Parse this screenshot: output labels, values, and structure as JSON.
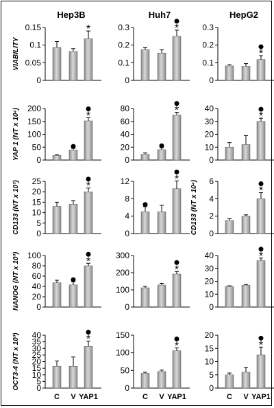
{
  "columns": [
    "Hep3B",
    "Huh7",
    "HepG2"
  ],
  "categories": [
    "C",
    "V",
    "YAP1"
  ],
  "colors": {
    "bar": "#8c8c8c",
    "bar_highlight": "#d9d9d9",
    "axis": "#000000"
  },
  "chart_data": [
    {
      "type": "bar",
      "row": 0,
      "col": 0,
      "title": "Hep3B",
      "ylabel": "VIABILITY",
      "ylim": [
        0,
        0.15
      ],
      "yticks": [
        "0",
        "0.05",
        "0.1",
        "0.15"
      ],
      "categories": [
        "C",
        "V",
        "YAP1"
      ],
      "values": [
        0.093,
        0.082,
        0.118
      ],
      "errors": [
        0.017,
        0.008,
        0.022
      ],
      "star": [
        false,
        false,
        true
      ],
      "dot": [
        false,
        false,
        false
      ]
    },
    {
      "type": "bar",
      "row": 0,
      "col": 1,
      "title": "Huh7",
      "ylabel": "",
      "ylim": [
        0,
        0.3
      ],
      "yticks": [
        "0",
        "0.1",
        "0.2",
        "0.3"
      ],
      "categories": [
        "C",
        "V",
        "YAP1"
      ],
      "values": [
        0.174,
        0.155,
        0.25
      ],
      "errors": [
        0.012,
        0.018,
        0.035
      ],
      "star": [
        false,
        false,
        true
      ],
      "dot": [
        false,
        false,
        true
      ]
    },
    {
      "type": "bar",
      "row": 0,
      "col": 2,
      "title": "HepG2",
      "ylabel": "",
      "ylim": [
        0,
        0.3
      ],
      "yticks": [
        "0",
        "0.1",
        "0.2",
        "0.3"
      ],
      "categories": [
        "C",
        "V",
        "YAP1"
      ],
      "values": [
        0.082,
        0.08,
        0.118
      ],
      "errors": [
        0.007,
        0.015,
        0.022
      ],
      "star": [
        false,
        false,
        true
      ],
      "dot": [
        false,
        false,
        true
      ]
    },
    {
      "type": "bar",
      "row": 1,
      "col": 0,
      "title": "",
      "ylabel": "YAP 1 (NT x 10⁴)",
      "ylim": [
        0,
        200
      ],
      "yticks": [
        "0",
        "50",
        "100",
        "150",
        "200"
      ],
      "categories": [
        "C",
        "V",
        "YAP1"
      ],
      "values": [
        18,
        39,
        152
      ],
      "errors": [
        3,
        6,
        12
      ],
      "star": [
        false,
        false,
        true
      ],
      "dot": [
        false,
        true,
        true
      ]
    },
    {
      "type": "bar",
      "row": 1,
      "col": 1,
      "title": "",
      "ylabel": "",
      "ylim": [
        0,
        80
      ],
      "yticks": [
        "0",
        "20",
        "40",
        "60",
        "80"
      ],
      "categories": [
        "C",
        "V",
        "YAP1"
      ],
      "values": [
        9,
        16,
        70
      ],
      "errors": [
        2,
        3,
        4
      ],
      "star": [
        false,
        false,
        true
      ],
      "dot": [
        false,
        true,
        true
      ]
    },
    {
      "type": "bar",
      "row": 1,
      "col": 2,
      "title": "",
      "ylabel": "",
      "ylim": [
        0,
        40
      ],
      "yticks": [
        "0",
        "10",
        "20",
        "30",
        "40"
      ],
      "categories": [
        "C",
        "V",
        "YAP1"
      ],
      "values": [
        10,
        12,
        30
      ],
      "errors": [
        3.5,
        7,
        2.5
      ],
      "star": [
        false,
        false,
        true
      ],
      "dot": [
        false,
        false,
        true
      ]
    },
    {
      "type": "bar",
      "row": 2,
      "col": 0,
      "title": "",
      "ylabel": "CD133 (NT x 10³)",
      "ylim": [
        0,
        25
      ],
      "yticks": [
        "0",
        "5",
        "10",
        "15",
        "20",
        "25"
      ],
      "categories": [
        "C",
        "V",
        "YAP1"
      ],
      "values": [
        13,
        14,
        20
      ],
      "errors": [
        2,
        1.8,
        1.8
      ],
      "star": [
        false,
        false,
        true
      ],
      "dot": [
        false,
        false,
        true
      ]
    },
    {
      "type": "bar",
      "row": 2,
      "col": 1,
      "title": "",
      "ylabel": "",
      "ylim": [
        0,
        12
      ],
      "yticks": [
        "0",
        "4",
        "8",
        "12"
      ],
      "categories": [
        "C",
        "V",
        "YAP1"
      ],
      "values": [
        5,
        5,
        10.3
      ],
      "errors": [
        1.2,
        1.5,
        1.8
      ],
      "star": [
        false,
        false,
        true
      ],
      "dot": [
        true,
        false,
        true
      ]
    },
    {
      "type": "bar",
      "row": 2,
      "col": 2,
      "title": "",
      "ylabel": "CD133 (NT x 10⁴)",
      "ylim": [
        0,
        6
      ],
      "yticks": [
        "0",
        "2",
        "4",
        "6"
      ],
      "categories": [
        "C",
        "V",
        "YAP1"
      ],
      "values": [
        1.5,
        2,
        4
      ],
      "errors": [
        0.2,
        0.15,
        0.7
      ],
      "star": [
        false,
        false,
        true
      ],
      "dot": [
        false,
        false,
        true
      ]
    },
    {
      "type": "bar",
      "row": 3,
      "col": 0,
      "title": "",
      "ylabel": "NANOG (NT x 10³)",
      "ylim": [
        0,
        100
      ],
      "yticks": [
        "0",
        "20",
        "40",
        "60",
        "80",
        "100"
      ],
      "categories": [
        "C",
        "V",
        "YAP1"
      ],
      "values": [
        47,
        43,
        80
      ],
      "errors": [
        5,
        6,
        5
      ],
      "star": [
        false,
        false,
        true
      ],
      "dot": [
        false,
        true,
        true
      ]
    },
    {
      "type": "bar",
      "row": 3,
      "col": 1,
      "title": "",
      "ylabel": "",
      "ylim": [
        0,
        300
      ],
      "yticks": [
        "0",
        "100",
        "200",
        "300"
      ],
      "categories": [
        "C",
        "V",
        "YAP1"
      ],
      "values": [
        112,
        128,
        192
      ],
      "errors": [
        8,
        10,
        15
      ],
      "star": [
        false,
        false,
        true
      ],
      "dot": [
        false,
        false,
        true
      ]
    },
    {
      "type": "bar",
      "row": 3,
      "col": 2,
      "title": "",
      "ylabel": "",
      "ylim": [
        0,
        40
      ],
      "yticks": [
        "0",
        "10",
        "20",
        "30",
        "40"
      ],
      "categories": [
        "C",
        "V",
        "YAP1"
      ],
      "values": [
        16,
        17,
        36
      ],
      "errors": [
        0.5,
        0.5,
        2
      ],
      "star": [
        false,
        false,
        true
      ],
      "dot": [
        false,
        false,
        true
      ]
    },
    {
      "type": "bar",
      "row": 4,
      "col": 0,
      "title": "",
      "ylabel": "OCT3-4 (NT x 10³)",
      "ylim": [
        0,
        40
      ],
      "yticks": [
        "0",
        "5",
        "10",
        "15",
        "20",
        "25",
        "30",
        "35",
        "40"
      ],
      "categories": [
        "C",
        "V",
        "YAP1"
      ],
      "values": [
        16.5,
        16.5,
        31.5
      ],
      "errors": [
        4,
        7,
        4
      ],
      "star": [
        false,
        false,
        true
      ],
      "dot": [
        false,
        false,
        true
      ]
    },
    {
      "type": "bar",
      "row": 4,
      "col": 1,
      "title": "",
      "ylabel": "",
      "ylim": [
        0,
        150
      ],
      "yticks": [
        "0",
        "50",
        "100",
        "150"
      ],
      "categories": [
        "C",
        "V",
        "YAP1"
      ],
      "values": [
        42,
        47,
        106
      ],
      "errors": [
        3,
        4,
        8
      ],
      "star": [
        false,
        false,
        true
      ],
      "dot": [
        false,
        false,
        true
      ]
    },
    {
      "type": "bar",
      "row": 4,
      "col": 2,
      "title": "",
      "ylabel": "",
      "ylim": [
        0,
        20
      ],
      "yticks": [
        "0",
        "5",
        "10",
        "15",
        "20"
      ],
      "categories": [
        "C",
        "V",
        "YAP1"
      ],
      "values": [
        5,
        6,
        12.5
      ],
      "errors": [
        0.7,
        1.8,
        3
      ],
      "star": [
        false,
        false,
        true
      ],
      "dot": [
        false,
        false,
        true
      ]
    }
  ]
}
